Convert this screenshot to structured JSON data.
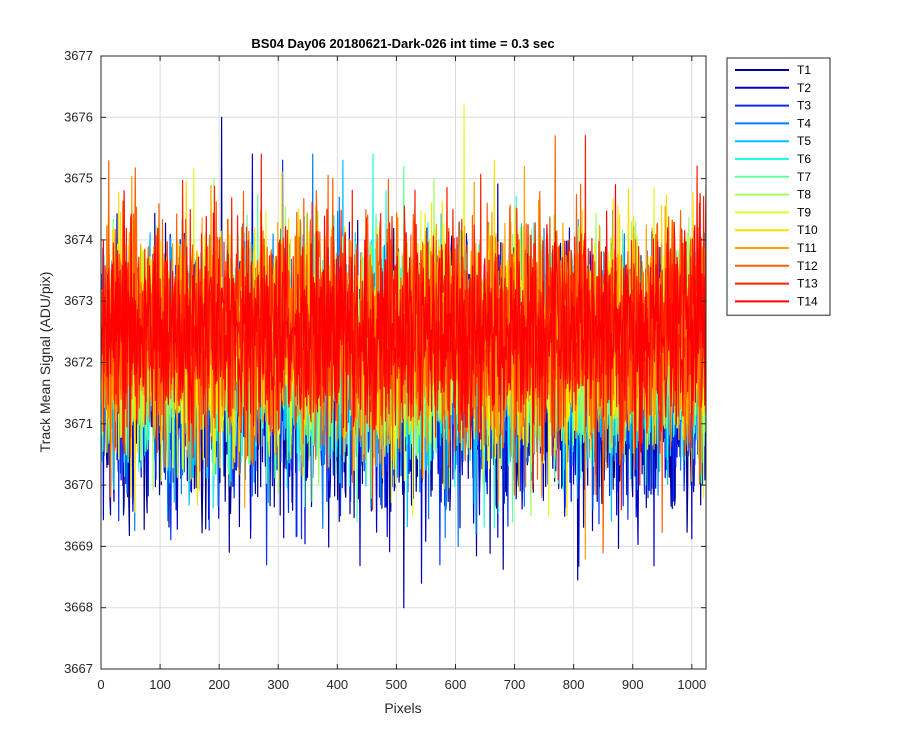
{
  "chart_data": {
    "type": "line",
    "title": "BS04 Day06 20180621-Dark-026 int time = 0.3 sec",
    "xlabel": "Pixels",
    "ylabel": "Track Mean Signal (ADU/pix)",
    "xlim": [
      0,
      1024
    ],
    "ylim": [
      3667,
      3677
    ],
    "xticks": [
      0,
      100,
      200,
      300,
      400,
      500,
      600,
      700,
      800,
      900,
      1000
    ],
    "yticks": [
      3667,
      3668,
      3669,
      3670,
      3671,
      3672,
      3673,
      3674,
      3675,
      3676,
      3677
    ],
    "grid": true,
    "legend_position": "outside-top-right",
    "n_points": 1024,
    "series": [
      {
        "name": "T1",
        "color": "#00008f",
        "mean": 3671.6,
        "min": 3668.0,
        "max": 3676.0
      },
      {
        "name": "T2",
        "color": "#0000cf",
        "mean": 3671.7,
        "min": 3668.4,
        "max": 3675.4
      },
      {
        "name": "T3",
        "color": "#0030ff",
        "mean": 3671.8,
        "min": 3668.7,
        "max": 3675.3
      },
      {
        "name": "T4",
        "color": "#0080ff",
        "mean": 3671.9,
        "min": 3669.0,
        "max": 3675.4
      },
      {
        "name": "T5",
        "color": "#00c0ff",
        "mean": 3672.0,
        "min": 3669.2,
        "max": 3675.3
      },
      {
        "name": "T6",
        "color": "#20ffdf",
        "mean": 3672.1,
        "min": 3669.3,
        "max": 3675.4
      },
      {
        "name": "T7",
        "color": "#60ff9f",
        "mean": 3672.1,
        "min": 3669.4,
        "max": 3675.2
      },
      {
        "name": "T8",
        "color": "#9fff60",
        "mean": 3672.2,
        "min": 3669.5,
        "max": 3675.0
      },
      {
        "name": "T9",
        "color": "#dfff20",
        "mean": 3672.3,
        "min": 3669.5,
        "max": 3676.2
      },
      {
        "name": "T10",
        "color": "#ffe000",
        "mean": 3672.4,
        "min": 3669.5,
        "max": 3675.3
      },
      {
        "name": "T11",
        "color": "#ffa000",
        "mean": 3672.4,
        "min": 3668.8,
        "max": 3675.2
      },
      {
        "name": "T12",
        "color": "#ff6000",
        "mean": 3672.5,
        "min": 3668.9,
        "max": 3675.7
      },
      {
        "name": "T13",
        "color": "#ff2000",
        "mean": 3672.5,
        "min": 3669.6,
        "max": 3675.7
      },
      {
        "name": "T14",
        "color": "#ff0000",
        "mean": 3672.5,
        "min": 3670.0,
        "max": 3674.9
      }
    ]
  }
}
